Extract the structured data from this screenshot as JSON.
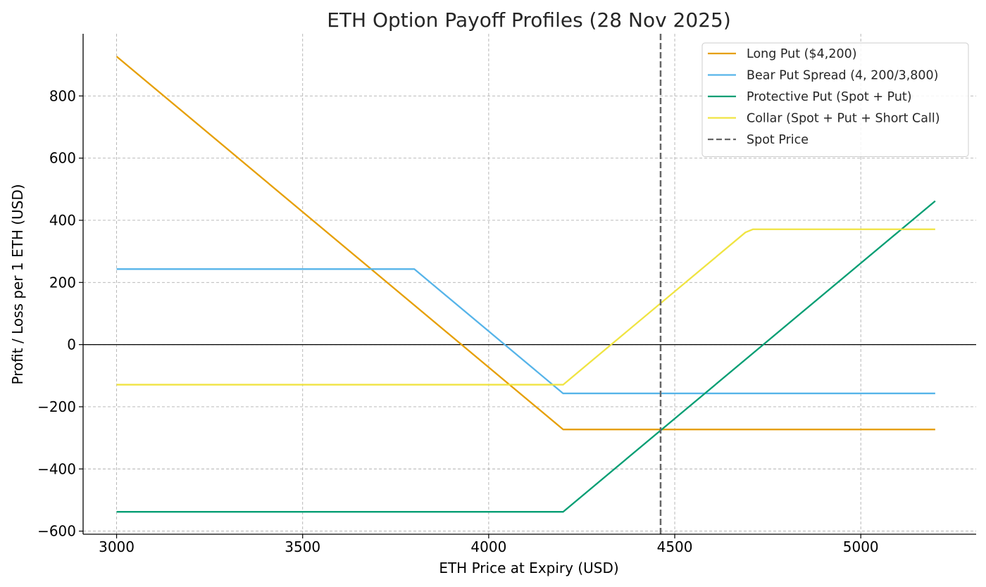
{
  "chart_data": {
    "type": "line",
    "title": "ETH Option Payoff Profiles (28 Nov 2025)",
    "xlabel": "ETH Price at Expiry (USD)",
    "ylabel": "Profit / Loss per 1 ETH (USD)",
    "xlim": [
      2910,
      5310
    ],
    "ylim": [
      -610,
      1000
    ],
    "xticks": [
      3000,
      3500,
      4000,
      4500,
      5000
    ],
    "yticks": [
      -600,
      -400,
      -200,
      0,
      200,
      400,
      600,
      800
    ],
    "xtick_labels": [
      "3000",
      "3500",
      "4000",
      "4500",
      "5000"
    ],
    "ytick_labels": [
      "−600",
      "−400",
      "−200",
      "0",
      "200",
      "400",
      "600",
      "800"
    ],
    "grid": true,
    "legend_position": "top-right",
    "zero_line": 0,
    "spot_price": 4462,
    "series": [
      {
        "name": "Long Put ($4,200)",
        "color": "#E69F00",
        "style": "solid",
        "x": [
          3000,
          4200,
          5200
        ],
        "y": [
          927,
          -273,
          -273
        ]
      },
      {
        "name": "Bear Put Spread (4, 200/3,800)",
        "color": "#56B4E9",
        "style": "solid",
        "x": [
          3000,
          3800,
          4200,
          5200
        ],
        "y": [
          243,
          243,
          -157,
          -157
        ]
      },
      {
        "name": "Protective Put (Spot + Put)",
        "color": "#009E73",
        "style": "solid",
        "x": [
          3000,
          4200,
          5200
        ],
        "y": [
          -538,
          -538,
          462
        ]
      },
      {
        "name": "Collar (Spot + Put + Short Call)",
        "color": "#F0E442",
        "style": "solid",
        "x": [
          3000,
          4200,
          4690,
          4710,
          5200
        ],
        "y": [
          -129,
          -129,
          361,
          371,
          371
        ]
      },
      {
        "name": "Spot Price",
        "color": "#666666",
        "style": "dashed",
        "x": [
          4462,
          4462
        ],
        "y": [
          -610,
          1000
        ]
      }
    ]
  }
}
